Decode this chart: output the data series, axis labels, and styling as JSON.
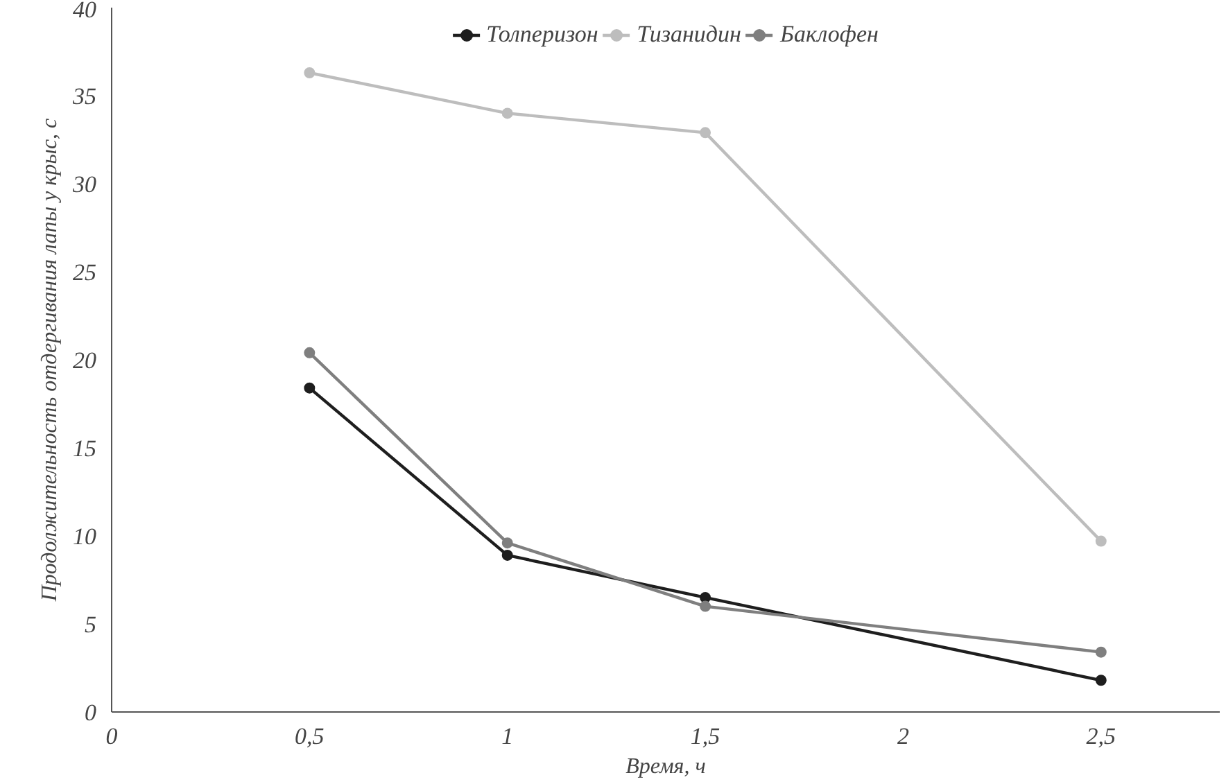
{
  "chart_data": {
    "type": "line",
    "xlabel": "Время, ч",
    "ylabel": "Продолжительность отдергивания лапы у крыс, с",
    "x": [
      0.5,
      1,
      1.5,
      2.5
    ],
    "xlim": [
      0,
      2.8
    ],
    "xticks": [
      {
        "value": 0,
        "label": "0"
      },
      {
        "value": 0.5,
        "label": "0,5"
      },
      {
        "value": 1,
        "label": "1"
      },
      {
        "value": 1.5,
        "label": "1,5"
      },
      {
        "value": 2,
        "label": "2"
      },
      {
        "value": 2.5,
        "label": "2,5"
      }
    ],
    "ylim": [
      0,
      40
    ],
    "yticks": [
      0,
      5,
      10,
      15,
      20,
      25,
      30,
      35,
      40
    ],
    "series": [
      {
        "name": "Толперизон",
        "color": "#1e1e1e",
        "values": [
          18.4,
          8.9,
          6.5,
          1.8
        ]
      },
      {
        "name": "Тизанидин",
        "color": "#bdbdbd",
        "values": [
          36.3,
          34.0,
          32.9,
          9.7
        ]
      },
      {
        "name": "Баклофен",
        "color": "#7f7f7f",
        "values": [
          20.4,
          9.6,
          6.0,
          3.4
        ]
      }
    ],
    "marker": "circle",
    "line_style": "solid",
    "grid": false,
    "legend": "top"
  }
}
